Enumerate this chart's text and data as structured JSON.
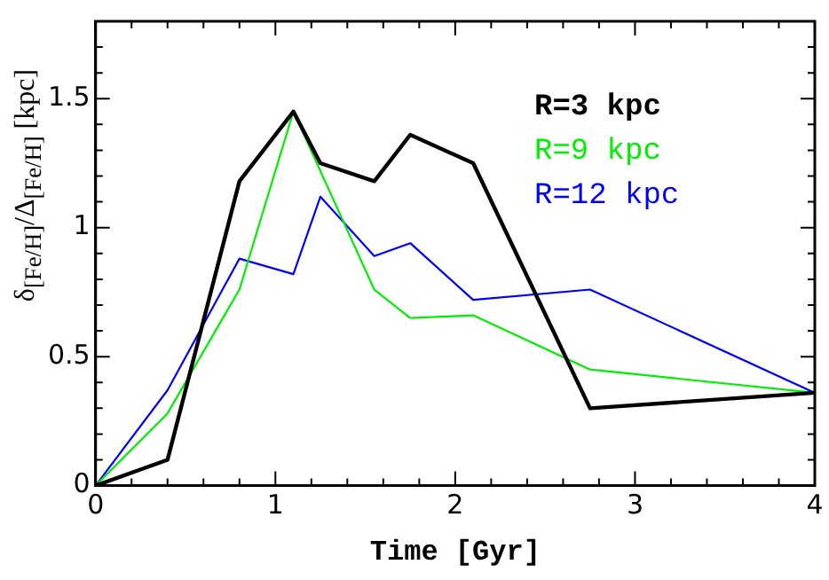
{
  "chart_data": {
    "type": "line",
    "xlabel": "Time [Gyr]",
    "ylabel": "δ$_{[Fe/H]}$/Δ$_{[Fe/H]}$ [kpc]",
    "xlim": [
      0,
      4
    ],
    "ylim": [
      0,
      1.8
    ],
    "xticks": [
      0,
      {
        "value": 0.2,
        "label": null
      },
      {
        "value": 0.4,
        "label": null
      },
      {
        "value": 0.6,
        "label": null
      },
      {
        "value": 0.8,
        "label": null
      },
      1,
      {
        "value": 1.2,
        "label": null
      },
      {
        "value": 1.4,
        "label": null
      },
      {
        "value": 1.6,
        "label": null
      },
      {
        "value": 1.8,
        "label": null
      },
      2,
      {
        "value": 2.2,
        "label": null
      },
      {
        "value": 2.4,
        "label": null
      },
      {
        "value": 2.6,
        "label": null
      },
      {
        "value": 2.8,
        "label": null
      },
      3,
      {
        "value": 3.2,
        "label": null
      },
      {
        "value": 3.4,
        "label": null
      },
      {
        "value": 3.6,
        "label": null
      },
      {
        "value": 3.8,
        "label": null
      },
      4
    ],
    "yticks": [
      0,
      {
        "value": 0.1,
        "label": null
      },
      {
        "value": 0.2,
        "label": null
      },
      {
        "value": 0.3,
        "label": null
      },
      {
        "value": 0.4,
        "label": null
      },
      0.5,
      {
        "value": 0.6,
        "label": null
      },
      {
        "value": 0.7,
        "label": null
      },
      {
        "value": 0.8,
        "label": null
      },
      {
        "value": 0.9,
        "label": null
      },
      1,
      {
        "value": 1.1,
        "label": null
      },
      {
        "value": 1.2,
        "label": null
      },
      {
        "value": 1.3,
        "label": null
      },
      {
        "value": 1.4,
        "label": null
      },
      1.5,
      {
        "value": 1.6,
        "label": null
      },
      {
        "value": 1.7,
        "label": null
      }
    ],
    "grid": false,
    "legend": "top right",
    "marker": "none",
    "line_style": "solid",
    "series": [
      {
        "name": "R=3 kpc",
        "color": "#000000",
        "x": [
          0,
          0.4,
          0.8,
          1.1,
          1.25,
          1.55,
          1.75,
          2.1,
          2.75,
          4
        ],
        "values": [
          0,
          0.1,
          1.18,
          1.45,
          1.25,
          1.18,
          1.36,
          1.25,
          0.3,
          0.36
        ]
      },
      {
        "name": "R=9 kpc",
        "color": "#00ee00",
        "x": [
          0,
          0.4,
          0.8,
          1.1,
          1.55,
          1.75,
          2.1,
          2.75,
          4
        ],
        "values": [
          0,
          0.28,
          0.76,
          1.45,
          0.76,
          0.65,
          0.66,
          0.45,
          0.36
        ]
      },
      {
        "name": "R=12 kpc",
        "color": "#0000ff",
        "x": [
          0,
          0.4,
          0.8,
          1.1,
          1.25,
          1.55,
          1.75,
          2.1,
          2.75,
          4
        ],
        "values": [
          0,
          0.37,
          0.88,
          0.82,
          1.12,
          0.89,
          0.94,
          0.72,
          0.76,
          0.36
        ]
      }
    ]
  }
}
